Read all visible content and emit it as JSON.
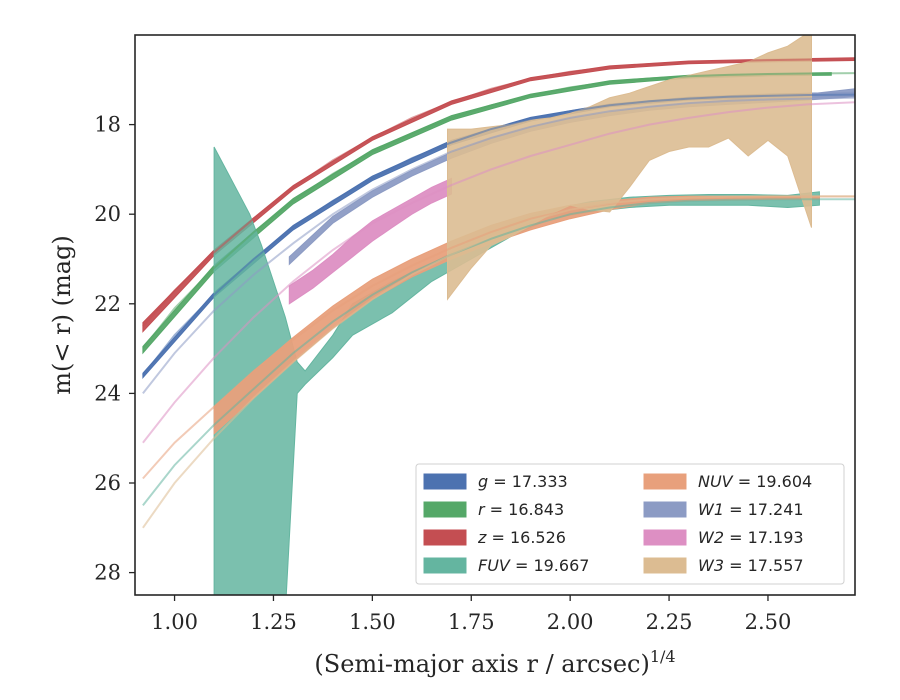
{
  "chart_data": {
    "type": "area",
    "xlabel": "(Semi-major axis r / arcsec)",
    "xlabel_superscript": "1/4",
    "ylabel": "m(< r) (mag)",
    "xlim": [
      0.9,
      2.72
    ],
    "ylim": [
      28.5,
      16.0
    ],
    "y_inverted": true,
    "x_ticks": [
      1.0,
      1.25,
      1.5,
      1.75,
      2.0,
      2.25,
      2.5
    ],
    "x_tick_labels": [
      "1.00",
      "1.25",
      "1.50",
      "1.75",
      "2.00",
      "2.25",
      "2.50"
    ],
    "y_ticks": [
      18,
      20,
      22,
      24,
      26,
      28
    ],
    "y_tick_labels": [
      "18",
      "20",
      "22",
      "24",
      "26",
      "28"
    ],
    "legend_position": "lower-right",
    "grid": false,
    "series": [
      {
        "name": "g",
        "value": "17.333",
        "color": "#4c72b0",
        "model_x": [
          0.92,
          1.0,
          1.1,
          1.2,
          1.3,
          1.4,
          1.5,
          1.6,
          1.7,
          1.8,
          1.9,
          2.0,
          2.1,
          2.2,
          2.3,
          2.4,
          2.5,
          2.6,
          2.72
        ],
        "model_y": [
          23.6,
          22.7,
          21.8,
          21.0,
          20.3,
          19.7,
          19.2,
          18.75,
          18.4,
          18.1,
          17.88,
          17.7,
          17.57,
          17.48,
          17.42,
          17.38,
          17.36,
          17.34,
          17.33
        ],
        "band_x": [
          0.92,
          1.1,
          1.3,
          1.5,
          1.7,
          1.9,
          2.1,
          2.3,
          2.5,
          2.72
        ],
        "band_lo": [
          23.65,
          21.85,
          20.35,
          19.25,
          18.45,
          17.92,
          17.6,
          17.45,
          17.4,
          17.38
        ],
        "band_hi": [
          23.55,
          21.75,
          20.25,
          19.15,
          18.35,
          17.84,
          17.54,
          17.39,
          17.32,
          17.28
        ]
      },
      {
        "name": "r",
        "value": "16.843",
        "color": "#55a868",
        "model_x": [
          0.92,
          1.0,
          1.1,
          1.2,
          1.3,
          1.4,
          1.5,
          1.6,
          1.7,
          1.8,
          1.9,
          2.0,
          2.1,
          2.2,
          2.3,
          2.4,
          2.5,
          2.6,
          2.72
        ],
        "model_y": [
          23.0,
          22.1,
          21.2,
          20.4,
          19.7,
          19.1,
          18.6,
          18.2,
          17.85,
          17.57,
          17.35,
          17.17,
          17.05,
          16.97,
          16.92,
          16.89,
          16.87,
          16.86,
          16.85
        ],
        "band_x": [
          0.92,
          1.1,
          1.3,
          1.5,
          1.7,
          1.9,
          2.1,
          2.3,
          2.5,
          2.66
        ],
        "band_lo": [
          23.1,
          21.28,
          19.77,
          18.67,
          17.9,
          17.4,
          17.1,
          16.96,
          16.91,
          16.9
        ],
        "band_hi": [
          22.95,
          21.14,
          19.65,
          18.56,
          17.8,
          17.32,
          17.02,
          16.9,
          16.86,
          16.84
        ]
      },
      {
        "name": "z",
        "value": "16.526",
        "color": "#c44e52",
        "model_x": [
          0.92,
          1.0,
          1.1,
          1.2,
          1.3,
          1.4,
          1.5,
          1.6,
          1.7,
          1.8,
          1.9,
          2.0,
          2.1,
          2.2,
          2.3,
          2.4,
          2.5,
          2.6,
          2.72
        ],
        "model_y": [
          22.5,
          21.7,
          20.85,
          20.1,
          19.4,
          18.8,
          18.3,
          17.85,
          17.5,
          17.2,
          16.98,
          16.82,
          16.72,
          16.65,
          16.61,
          16.58,
          16.56,
          16.55,
          16.53
        ],
        "band_x": [
          0.92,
          1.1,
          1.3,
          1.5,
          1.7,
          1.9,
          2.1,
          2.3,
          2.5,
          2.72
        ],
        "band_lo": [
          22.62,
          20.92,
          19.45,
          18.35,
          17.55,
          17.02,
          16.76,
          16.64,
          16.6,
          16.57
        ],
        "band_hi": [
          22.42,
          20.8,
          19.36,
          18.27,
          17.47,
          16.95,
          16.69,
          16.58,
          16.54,
          16.51
        ]
      },
      {
        "name": "FUV",
        "value": "19.667",
        "color": "#64b5a0",
        "model_x": [
          0.92,
          1.0,
          1.1,
          1.2,
          1.3,
          1.4,
          1.5,
          1.6,
          1.7,
          1.8,
          1.9,
          2.0,
          2.1,
          2.2,
          2.3,
          2.4,
          2.5,
          2.6,
          2.72
        ],
        "model_y": [
          26.5,
          25.6,
          24.7,
          23.9,
          23.1,
          22.4,
          21.8,
          21.3,
          20.9,
          20.55,
          20.25,
          20.0,
          19.85,
          19.75,
          19.7,
          19.68,
          19.67,
          19.667,
          19.667
        ],
        "band_x": [
          1.1,
          1.13,
          1.16,
          1.19,
          1.22,
          1.25,
          1.28,
          1.31,
          1.33,
          1.4,
          1.45,
          1.55,
          1.65,
          1.75,
          1.85,
          1.95,
          2.05,
          2.15,
          2.25,
          2.35,
          2.45,
          2.55,
          2.63
        ],
        "band_lo": [
          29.0,
          29.0,
          29.0,
          29.0,
          29.0,
          29.0,
          28.9,
          24.0,
          23.8,
          23.2,
          22.7,
          22.2,
          21.5,
          21.0,
          20.5,
          20.1,
          19.95,
          19.85,
          19.8,
          19.8,
          19.8,
          19.85,
          19.8
        ],
        "band_hi": [
          18.5,
          19.0,
          19.5,
          20.0,
          20.7,
          21.5,
          22.3,
          23.3,
          23.5,
          22.7,
          22.0,
          21.5,
          21.1,
          20.6,
          20.2,
          19.9,
          19.72,
          19.62,
          19.58,
          19.56,
          19.56,
          19.58,
          19.5
        ]
      },
      {
        "name": "NUV",
        "value": "19.604",
        "color": "#e8a07c",
        "model_x": [
          0.92,
          1.0,
          1.1,
          1.2,
          1.3,
          1.4,
          1.5,
          1.6,
          1.7,
          1.8,
          1.9,
          2.0,
          2.1,
          2.2,
          2.3,
          2.4,
          2.5,
          2.6,
          2.72
        ],
        "model_y": [
          25.9,
          25.1,
          24.3,
          23.5,
          22.8,
          22.15,
          21.6,
          21.15,
          20.75,
          20.4,
          20.1,
          19.9,
          19.77,
          19.69,
          19.65,
          19.62,
          19.61,
          19.605,
          19.604
        ],
        "band_x": [
          1.1,
          1.2,
          1.3,
          1.4,
          1.5,
          1.6,
          1.7,
          1.8,
          1.9,
          2.0,
          2.1,
          2.2,
          2.3,
          2.4,
          2.5,
          2.63
        ],
        "band_lo": [
          24.9,
          24.1,
          23.3,
          22.55,
          21.9,
          21.4,
          21.0,
          20.65,
          20.35,
          20.1,
          19.9,
          19.75,
          19.7,
          19.68,
          19.67,
          19.66
        ],
        "band_hi": [
          24.3,
          23.5,
          22.75,
          22.05,
          21.45,
          21.0,
          20.6,
          20.25,
          19.98,
          19.8,
          19.7,
          19.62,
          19.6,
          19.6,
          19.6,
          19.6
        ]
      },
      {
        "name": "W1",
        "value": "17.241",
        "color": "#8c9bc4",
        "model_x": [
          0.92,
          1.0,
          1.1,
          1.2,
          1.3,
          1.4,
          1.5,
          1.6,
          1.7,
          1.8,
          1.9,
          2.0,
          2.1,
          2.2,
          2.3,
          2.4,
          2.5,
          2.6,
          2.72
        ],
        "model_y": [
          24.0,
          23.1,
          22.15,
          21.35,
          20.65,
          20.0,
          19.45,
          19.0,
          18.6,
          18.3,
          18.05,
          17.85,
          17.7,
          17.6,
          17.52,
          17.47,
          17.44,
          17.42,
          17.4
        ],
        "band_x": [
          1.29,
          1.4,
          1.5,
          1.6,
          1.7,
          1.8,
          1.9,
          2.0,
          2.1,
          2.2,
          2.3,
          2.4,
          2.5,
          2.6,
          2.72
        ],
        "band_lo": [
          21.12,
          20.2,
          19.62,
          19.15,
          18.75,
          18.42,
          18.15,
          17.95,
          17.8,
          17.68,
          17.6,
          17.55,
          17.5,
          17.45,
          17.38
        ],
        "band_hi": [
          20.95,
          20.05,
          19.48,
          19.02,
          18.62,
          18.3,
          18.05,
          17.86,
          17.72,
          17.6,
          17.52,
          17.45,
          17.38,
          17.32,
          17.2
        ]
      },
      {
        "name": "W2",
        "value": "17.193",
        "color": "#dd8fc3",
        "model_x": [
          0.92,
          1.0,
          1.1,
          1.2,
          1.3,
          1.4,
          1.5,
          1.6,
          1.7,
          1.8,
          1.9,
          2.0,
          2.1,
          2.2,
          2.3,
          2.4,
          2.5,
          2.6,
          2.72
        ],
        "model_y": [
          25.1,
          24.2,
          23.2,
          22.3,
          21.5,
          20.8,
          20.2,
          19.75,
          19.35,
          19.0,
          18.7,
          18.45,
          18.2,
          18.0,
          17.85,
          17.72,
          17.62,
          17.55,
          17.5
        ],
        "band_x": [
          1.29,
          1.35,
          1.4,
          1.45,
          1.5,
          1.55,
          1.6,
          1.65,
          1.7
        ],
        "band_lo": [
          22.0,
          21.65,
          21.3,
          20.95,
          20.6,
          20.3,
          20.0,
          19.75,
          19.55
        ],
        "band_hi": [
          21.6,
          21.25,
          20.9,
          20.5,
          20.15,
          19.9,
          19.65,
          19.4,
          19.2
        ]
      },
      {
        "name": "W3",
        "value": "17.557",
        "color": "#dcbc92",
        "model_x": [
          0.92,
          1.0,
          1.1,
          1.2,
          1.3,
          1.4,
          1.5,
          1.6,
          1.7,
          1.8,
          1.9,
          2.0,
          2.1,
          2.2,
          2.3,
          2.4,
          2.5,
          2.6,
          2.72
        ],
        "model_y": [
          27.0,
          26.0,
          25.0,
          24.1,
          23.3,
          22.55,
          21.9,
          21.35,
          20.9,
          20.5,
          20.15,
          19.9,
          19.75,
          19.67,
          19.63,
          19.61,
          19.6,
          19.6,
          19.6
        ],
        "band_x": [
          1.69,
          1.75,
          1.8,
          1.85,
          1.9,
          1.95,
          2.0,
          2.05,
          2.1,
          2.15,
          2.2,
          2.25,
          2.3,
          2.35,
          2.4,
          2.45,
          2.5,
          2.55,
          2.61
        ],
        "band_lo": [
          21.9,
          21.2,
          20.7,
          20.5,
          20.25,
          20.0,
          19.8,
          19.9,
          19.95,
          19.4,
          18.8,
          18.6,
          18.5,
          18.5,
          18.3,
          18.7,
          18.35,
          18.7,
          20.3
        ],
        "band_hi": [
          18.1,
          18.1,
          18.05,
          18.0,
          17.9,
          17.85,
          17.75,
          17.6,
          17.4,
          17.3,
          17.15,
          17.0,
          16.9,
          16.8,
          16.7,
          16.6,
          16.4,
          16.25,
          15.9
        ]
      }
    ]
  },
  "legend": {
    "columns": [
      [
        "g",
        "r",
        "z",
        "FUV"
      ],
      [
        "NUV",
        "W1",
        "W2",
        "W3"
      ]
    ]
  }
}
